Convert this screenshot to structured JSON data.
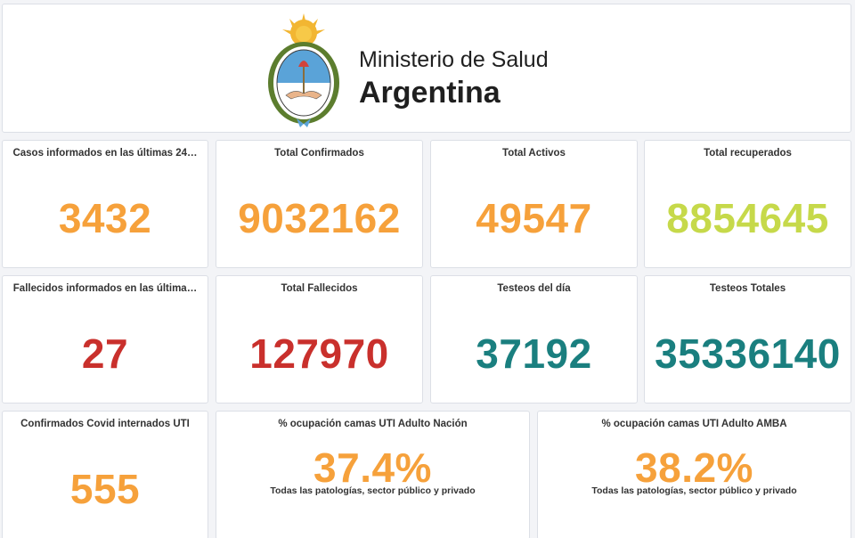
{
  "header": {
    "ministry": "Ministerio de Salud",
    "country": "Argentina"
  },
  "colors": {
    "orange": "#f6a13b",
    "lime": "#c6d94a",
    "red": "#c9302c",
    "teal": "#1a7f7f"
  },
  "row1": [
    {
      "title": "Casos informados en las últimas 24…",
      "value": "3432"
    },
    {
      "title": "Total Confirmados",
      "value": "9032162"
    },
    {
      "title": "Total Activos",
      "value": "49547"
    },
    {
      "title": "Total recuperados",
      "value": "8854645"
    }
  ],
  "row2": [
    {
      "title": "Fallecidos informados en las última…",
      "value": "27"
    },
    {
      "title": "Total Fallecidos",
      "value": "127970"
    },
    {
      "title": "Testeos del día",
      "value": "37192"
    },
    {
      "title": "Testeos Totales",
      "value": "35336140"
    }
  ],
  "row3": [
    {
      "title": "Confirmados Covid internados UTI",
      "value": "555"
    },
    {
      "title": "% ocupación camas UTI Adulto Nación",
      "value": "37.4%",
      "subtitle": "Todas las patologías, sector público y privado"
    },
    {
      "title": "% ocupación camas UTI Adulto AMBA",
      "value": "38.2%",
      "subtitle": "Todas las patologías, sector público y privado"
    }
  ]
}
